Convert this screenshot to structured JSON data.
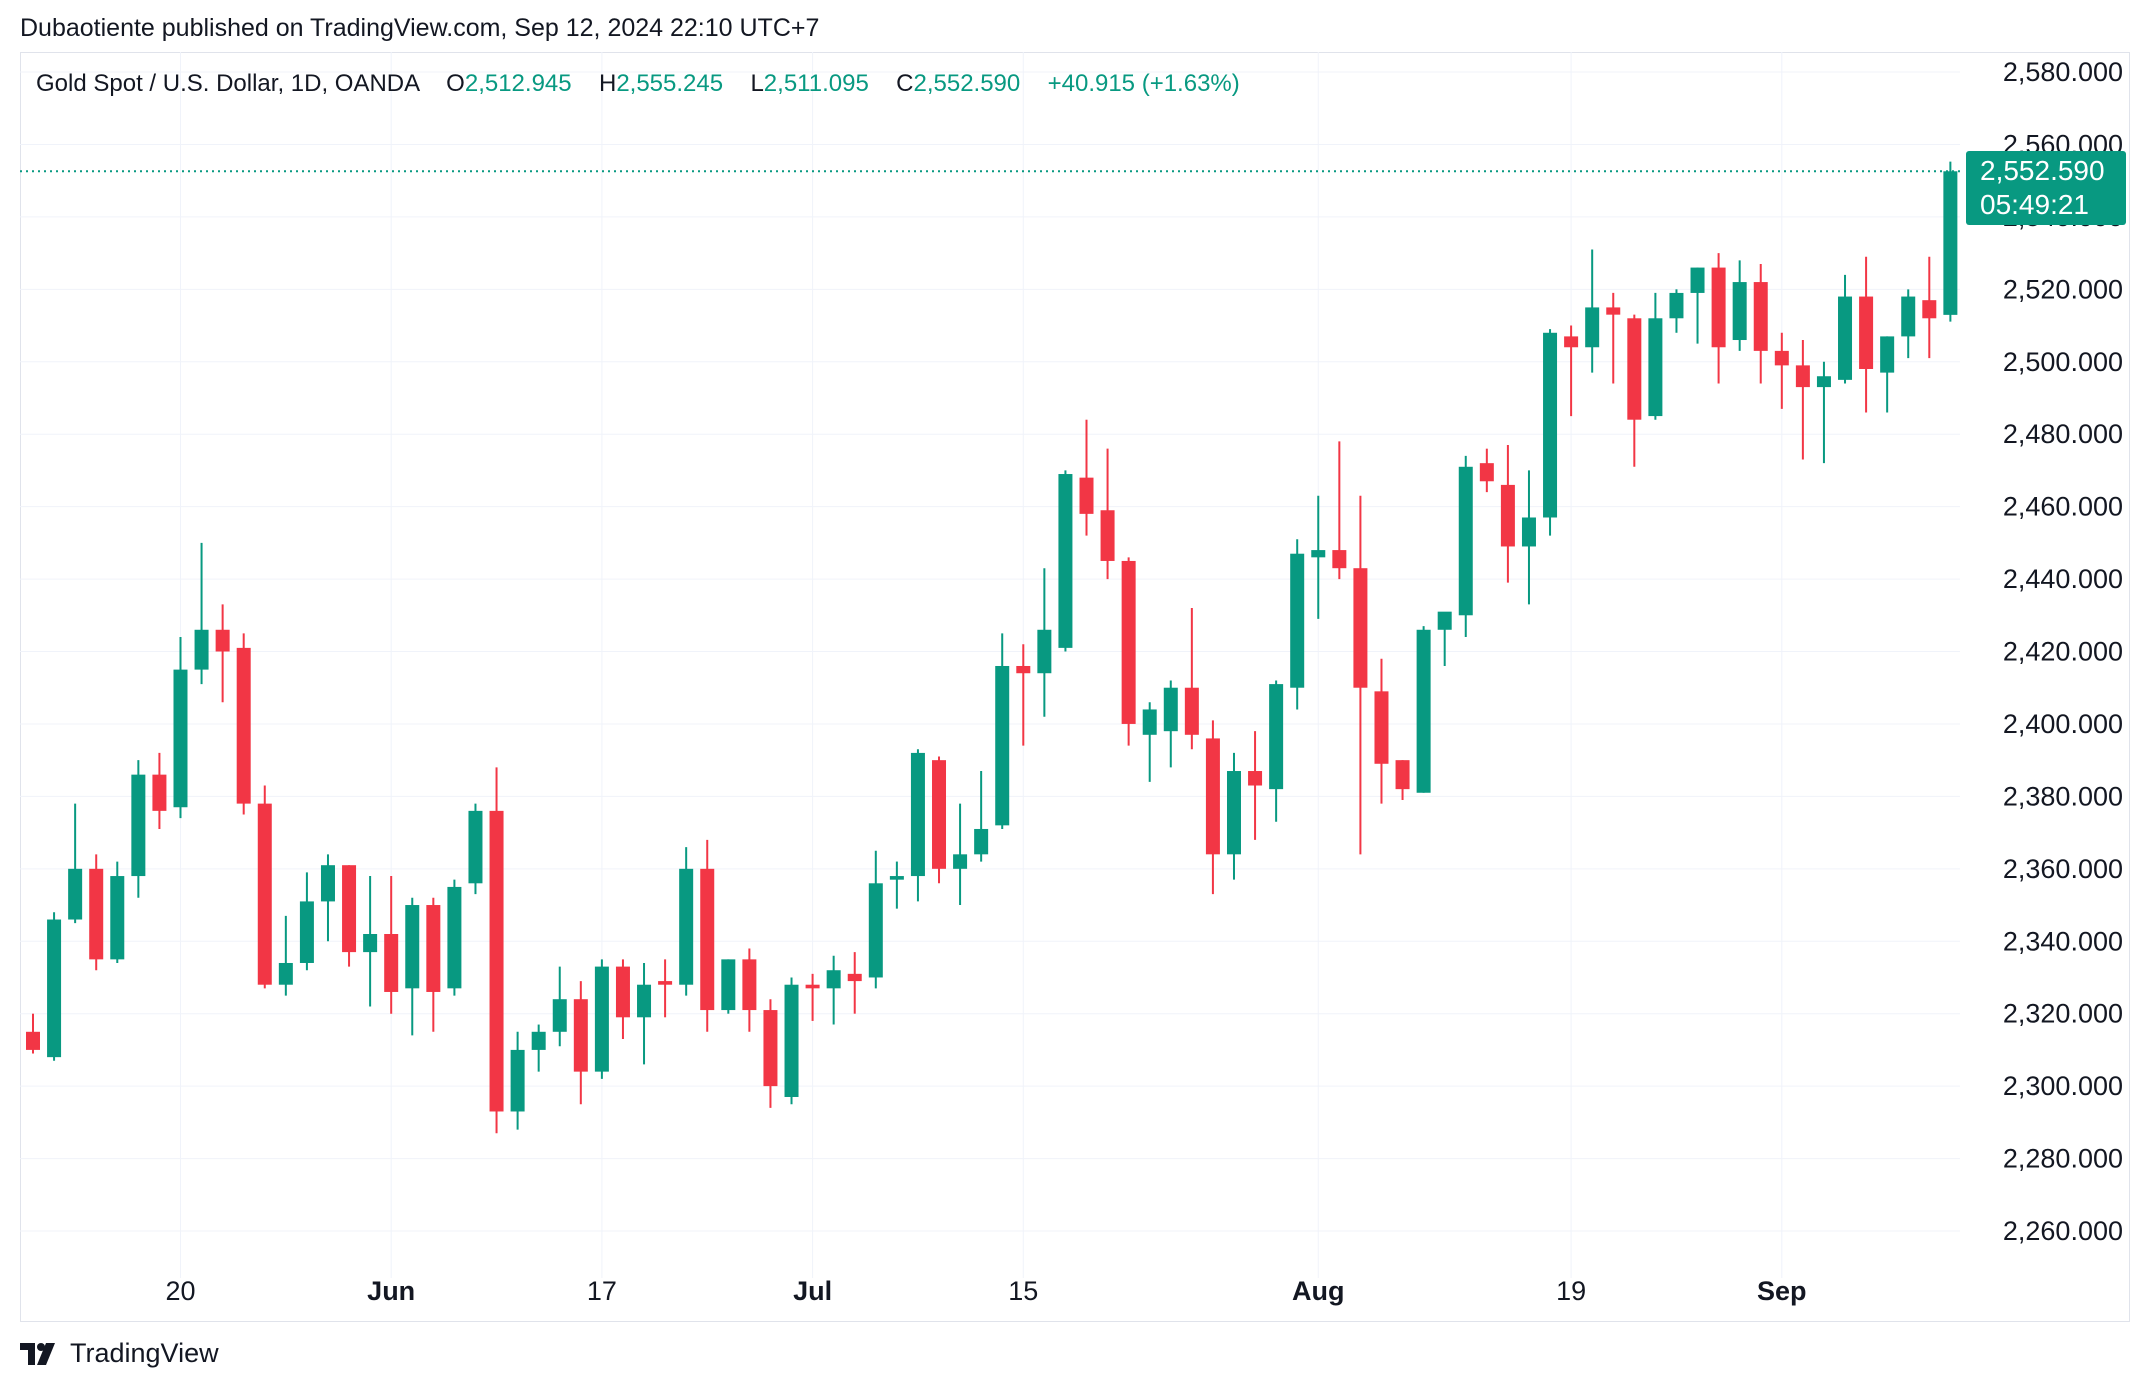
{
  "header": {
    "publisher": "Dubaotiente published on TradingView.com, Sep 12, 2024 22:10 UTC+7"
  },
  "legend": {
    "symbol": "Gold Spot / U.S. Dollar, 1D, OANDA",
    "o_label": "O",
    "o_value": "2,512.945",
    "h_label": "H",
    "h_value": "2,555.245",
    "l_label": "L",
    "l_value": "2,511.095",
    "c_label": "C",
    "c_value": "2,552.590",
    "change": "+40.915 (+1.63%)"
  },
  "last_price": {
    "price": "2,552.590",
    "countdown": "05:49:21"
  },
  "brand": {
    "name": "TradingView"
  },
  "colors": {
    "up": "#089981",
    "down": "#f23645",
    "grid": "#f0f3fa",
    "text": "#131722"
  },
  "icons": {
    "brand_logo": "tradingview-logo-icon"
  },
  "chart_data": {
    "type": "candlestick",
    "title": "Gold Spot / U.S. Dollar, 1D, OANDA",
    "ylim": [
      2245,
      2590
    ],
    "y_ticks": [
      {
        "value": 2260,
        "label": "2,260.000"
      },
      {
        "value": 2280,
        "label": "2,280.000"
      },
      {
        "value": 2300,
        "label": "2,300.000"
      },
      {
        "value": 2320,
        "label": "2,320.000"
      },
      {
        "value": 2340,
        "label": "2,340.000"
      },
      {
        "value": 2360,
        "label": "2,360.000"
      },
      {
        "value": 2380,
        "label": "2,380.000"
      },
      {
        "value": 2400,
        "label": "2,400.000"
      },
      {
        "value": 2420,
        "label": "2,420.000"
      },
      {
        "value": 2440,
        "label": "2,440.000"
      },
      {
        "value": 2460,
        "label": "2,460.000"
      },
      {
        "value": 2480,
        "label": "2,480.000"
      },
      {
        "value": 2500,
        "label": "2,500.000"
      },
      {
        "value": 2520,
        "label": "2,520.000"
      },
      {
        "value": 2540,
        "label": "2,540.000"
      },
      {
        "value": 2560,
        "label": "2,560.000"
      },
      {
        "value": 2580,
        "label": "2,580.000"
      }
    ],
    "x_ticks": [
      {
        "index": 7,
        "label": "20"
      },
      {
        "index": 17,
        "label": "Jun"
      },
      {
        "index": 27,
        "label": "17"
      },
      {
        "index": 37,
        "label": "Jul"
      },
      {
        "index": 47,
        "label": "15"
      },
      {
        "index": 61,
        "label": "Aug"
      },
      {
        "index": 73,
        "label": "19"
      },
      {
        "index": 83,
        "label": "Sep"
      }
    ],
    "last_price": 2552.59,
    "grid": true,
    "candles": [
      {
        "o": 2315,
        "h": 2320,
        "l": 2309,
        "c": 2310
      },
      {
        "o": 2308,
        "h": 2348,
        "l": 2307,
        "c": 2346
      },
      {
        "o": 2346,
        "h": 2378,
        "l": 2345,
        "c": 2360
      },
      {
        "o": 2360,
        "h": 2364,
        "l": 2332,
        "c": 2335
      },
      {
        "o": 2335,
        "h": 2362,
        "l": 2334,
        "c": 2358
      },
      {
        "o": 2358,
        "h": 2390,
        "l": 2352,
        "c": 2386
      },
      {
        "o": 2386,
        "h": 2392,
        "l": 2371,
        "c": 2376
      },
      {
        "o": 2377,
        "h": 2424,
        "l": 2374,
        "c": 2415
      },
      {
        "o": 2415,
        "h": 2450,
        "l": 2411,
        "c": 2426
      },
      {
        "o": 2426,
        "h": 2433,
        "l": 2406,
        "c": 2420
      },
      {
        "o": 2421,
        "h": 2425,
        "l": 2375,
        "c": 2378
      },
      {
        "o": 2378,
        "h": 2383,
        "l": 2327,
        "c": 2328
      },
      {
        "o": 2328,
        "h": 2347,
        "l": 2325,
        "c": 2334
      },
      {
        "o": 2334,
        "h": 2359,
        "l": 2332,
        "c": 2351
      },
      {
        "o": 2351,
        "h": 2364,
        "l": 2340,
        "c": 2361
      },
      {
        "o": 2361,
        "h": 2361,
        "l": 2333,
        "c": 2337
      },
      {
        "o": 2337,
        "h": 2358,
        "l": 2322,
        "c": 2342
      },
      {
        "o": 2342,
        "h": 2358,
        "l": 2320,
        "c": 2326
      },
      {
        "o": 2327,
        "h": 2352,
        "l": 2314,
        "c": 2350
      },
      {
        "o": 2350,
        "h": 2352,
        "l": 2315,
        "c": 2326
      },
      {
        "o": 2327,
        "h": 2357,
        "l": 2325,
        "c": 2355
      },
      {
        "o": 2356,
        "h": 2378,
        "l": 2353,
        "c": 2376
      },
      {
        "o": 2376,
        "h": 2388,
        "l": 2287,
        "c": 2293
      },
      {
        "o": 2293,
        "h": 2315,
        "l": 2288,
        "c": 2310
      },
      {
        "o": 2310,
        "h": 2317,
        "l": 2304,
        "c": 2315
      },
      {
        "o": 2315,
        "h": 2333,
        "l": 2311,
        "c": 2324
      },
      {
        "o": 2324,
        "h": 2329,
        "l": 2295,
        "c": 2304
      },
      {
        "o": 2304,
        "h": 2335,
        "l": 2302,
        "c": 2333
      },
      {
        "o": 2333,
        "h": 2335,
        "l": 2313,
        "c": 2319
      },
      {
        "o": 2319,
        "h": 2334,
        "l": 2306,
        "c": 2328
      },
      {
        "o": 2329,
        "h": 2335,
        "l": 2319,
        "c": 2328
      },
      {
        "o": 2328,
        "h": 2366,
        "l": 2325,
        "c": 2360
      },
      {
        "o": 2360,
        "h": 2368,
        "l": 2315,
        "c": 2321
      },
      {
        "o": 2321,
        "h": 2335,
        "l": 2320,
        "c": 2335
      },
      {
        "o": 2335,
        "h": 2338,
        "l": 2315,
        "c": 2321
      },
      {
        "o": 2321,
        "h": 2324,
        "l": 2294,
        "c": 2300
      },
      {
        "o": 2297,
        "h": 2330,
        "l": 2295,
        "c": 2328
      },
      {
        "o": 2328,
        "h": 2331,
        "l": 2318,
        "c": 2327
      },
      {
        "o": 2327,
        "h": 2336,
        "l": 2317,
        "c": 2332
      },
      {
        "o": 2331,
        "h": 2337,
        "l": 2320,
        "c": 2329
      },
      {
        "o": 2330,
        "h": 2365,
        "l": 2327,
        "c": 2356
      },
      {
        "o": 2357,
        "h": 2362,
        "l": 2349,
        "c": 2358
      },
      {
        "o": 2358,
        "h": 2393,
        "l": 2351,
        "c": 2392
      },
      {
        "o": 2390,
        "h": 2391,
        "l": 2356,
        "c": 2360
      },
      {
        "o": 2360,
        "h": 2378,
        "l": 2350,
        "c": 2364
      },
      {
        "o": 2364,
        "h": 2387,
        "l": 2362,
        "c": 2371
      },
      {
        "o": 2372,
        "h": 2425,
        "l": 2371,
        "c": 2416
      },
      {
        "o": 2416,
        "h": 2422,
        "l": 2394,
        "c": 2414
      },
      {
        "o": 2414,
        "h": 2443,
        "l": 2402,
        "c": 2426
      },
      {
        "o": 2421,
        "h": 2470,
        "l": 2420,
        "c": 2469
      },
      {
        "o": 2468,
        "h": 2484,
        "l": 2452,
        "c": 2458
      },
      {
        "o": 2459,
        "h": 2476,
        "l": 2440,
        "c": 2445
      },
      {
        "o": 2445,
        "h": 2446,
        "l": 2394,
        "c": 2400
      },
      {
        "o": 2397,
        "h": 2406,
        "l": 2384,
        "c": 2404
      },
      {
        "o": 2398,
        "h": 2412,
        "l": 2388,
        "c": 2410
      },
      {
        "o": 2410,
        "h": 2432,
        "l": 2393,
        "c": 2397
      },
      {
        "o": 2396,
        "h": 2401,
        "l": 2353,
        "c": 2364
      },
      {
        "o": 2364,
        "h": 2392,
        "l": 2357,
        "c": 2387
      },
      {
        "o": 2387,
        "h": 2398,
        "l": 2368,
        "c": 2383
      },
      {
        "o": 2382,
        "h": 2412,
        "l": 2373,
        "c": 2411
      },
      {
        "o": 2410,
        "h": 2451,
        "l": 2404,
        "c": 2447
      },
      {
        "o": 2446,
        "h": 2463,
        "l": 2429,
        "c": 2448
      },
      {
        "o": 2448,
        "h": 2478,
        "l": 2440,
        "c": 2443
      },
      {
        "o": 2443,
        "h": 2463,
        "l": 2364,
        "c": 2410
      },
      {
        "o": 2409,
        "h": 2418,
        "l": 2378,
        "c": 2389
      },
      {
        "o": 2390,
        "h": 2390,
        "l": 2379,
        "c": 2382
      },
      {
        "o": 2381,
        "h": 2427,
        "l": 2381,
        "c": 2426
      },
      {
        "o": 2426,
        "h": 2430,
        "l": 2416,
        "c": 2431
      },
      {
        "o": 2430,
        "h": 2474,
        "l": 2424,
        "c": 2471
      },
      {
        "o": 2472,
        "h": 2476,
        "l": 2464,
        "c": 2467
      },
      {
        "o": 2466,
        "h": 2477,
        "l": 2439,
        "c": 2449
      },
      {
        "o": 2449,
        "h": 2470,
        "l": 2433,
        "c": 2457
      },
      {
        "o": 2457,
        "h": 2509,
        "l": 2452,
        "c": 2508
      },
      {
        "o": 2507,
        "h": 2510,
        "l": 2485,
        "c": 2504
      },
      {
        "o": 2504,
        "h": 2531,
        "l": 2497,
        "c": 2515
      },
      {
        "o": 2515,
        "h": 2519,
        "l": 2494,
        "c": 2513
      },
      {
        "o": 2512,
        "h": 2513,
        "l": 2471,
        "c": 2484
      },
      {
        "o": 2485,
        "h": 2519,
        "l": 2484,
        "c": 2512
      },
      {
        "o": 2512,
        "h": 2520,
        "l": 2508,
        "c": 2519
      },
      {
        "o": 2519,
        "h": 2526,
        "l": 2505,
        "c": 2526
      },
      {
        "o": 2526,
        "h": 2530,
        "l": 2494,
        "c": 2504
      },
      {
        "o": 2506,
        "h": 2528,
        "l": 2503,
        "c": 2522
      },
      {
        "o": 2522,
        "h": 2527,
        "l": 2494,
        "c": 2503
      },
      {
        "o": 2503,
        "h": 2508,
        "l": 2487,
        "c": 2499
      },
      {
        "o": 2499,
        "h": 2506,
        "l": 2473,
        "c": 2493
      },
      {
        "o": 2493,
        "h": 2500,
        "l": 2472,
        "c": 2496
      },
      {
        "o": 2495,
        "h": 2524,
        "l": 2494,
        "c": 2518
      },
      {
        "o": 2518,
        "h": 2529,
        "l": 2486,
        "c": 2498
      },
      {
        "o": 2497,
        "h": 2507,
        "l": 2486,
        "c": 2507
      },
      {
        "o": 2507,
        "h": 2520,
        "l": 2501,
        "c": 2518
      },
      {
        "o": 2517,
        "h": 2529,
        "l": 2501,
        "c": 2512
      },
      {
        "o": 2512.945,
        "h": 2555.245,
        "l": 2511.095,
        "c": 2552.59
      }
    ]
  }
}
